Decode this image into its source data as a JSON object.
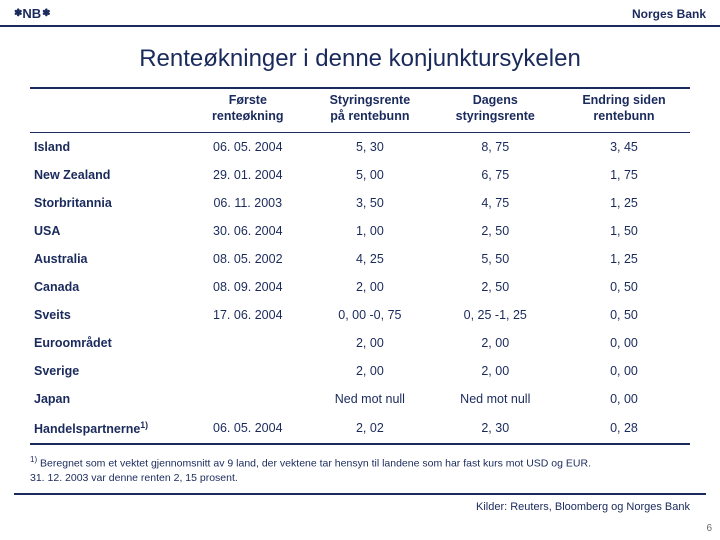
{
  "header": {
    "logo_text": "NB",
    "bank_name": "Norges Bank"
  },
  "title": "Renteøkninger i denne konjunktursykelen",
  "table": {
    "columns": [
      "",
      "Første\nrenteøkning",
      "Styringsrente\npå rentebunn",
      "Dagens\nstyringsrente",
      "Endring siden\nrentebunn"
    ],
    "rows": [
      [
        "Island",
        "06. 05. 2004",
        "5, 30",
        "8, 75",
        "3, 45"
      ],
      [
        "New Zealand",
        "29. 01. 2004",
        "5, 00",
        "6, 75",
        "1, 75"
      ],
      [
        "Storbritannia",
        "06. 11. 2003",
        "3, 50",
        "4, 75",
        "1, 25"
      ],
      [
        "USA",
        "30. 06. 2004",
        "1, 00",
        "2, 50",
        "1, 50"
      ],
      [
        "Australia",
        "08. 05. 2002",
        "4, 25",
        "5, 50",
        "1, 25"
      ],
      [
        "Canada",
        "08. 09. 2004",
        "2, 00",
        "2, 50",
        "0, 50"
      ],
      [
        "Sveits",
        "17. 06. 2004",
        "0, 00 -0, 75",
        "0, 25 -1, 25",
        "0, 50"
      ],
      [
        "Euroområdet",
        "",
        "2, 00",
        "2, 00",
        "0, 00"
      ],
      [
        "Sverige",
        "",
        "2, 00",
        "2, 00",
        "0, 00"
      ],
      [
        "Japan",
        "",
        "Ned mot null",
        "Ned mot null",
        "0, 00"
      ],
      [
        "Handelspartnerne",
        "06. 05. 2004",
        "2, 02",
        "2, 30",
        "0, 28"
      ]
    ],
    "last_row_sup": "1)"
  },
  "footnote": {
    "sup": "1)",
    "line1": "Beregnet som et vektet gjennomsnitt av 9 land, der vektene tar hensyn til landene som har fast kurs mot USD og EUR.",
    "line2": "31. 12. 2003 var denne renten 2, 15 prosent."
  },
  "source": "Kilder: Reuters, Bloomberg og Norges Bank",
  "page_number": "6"
}
